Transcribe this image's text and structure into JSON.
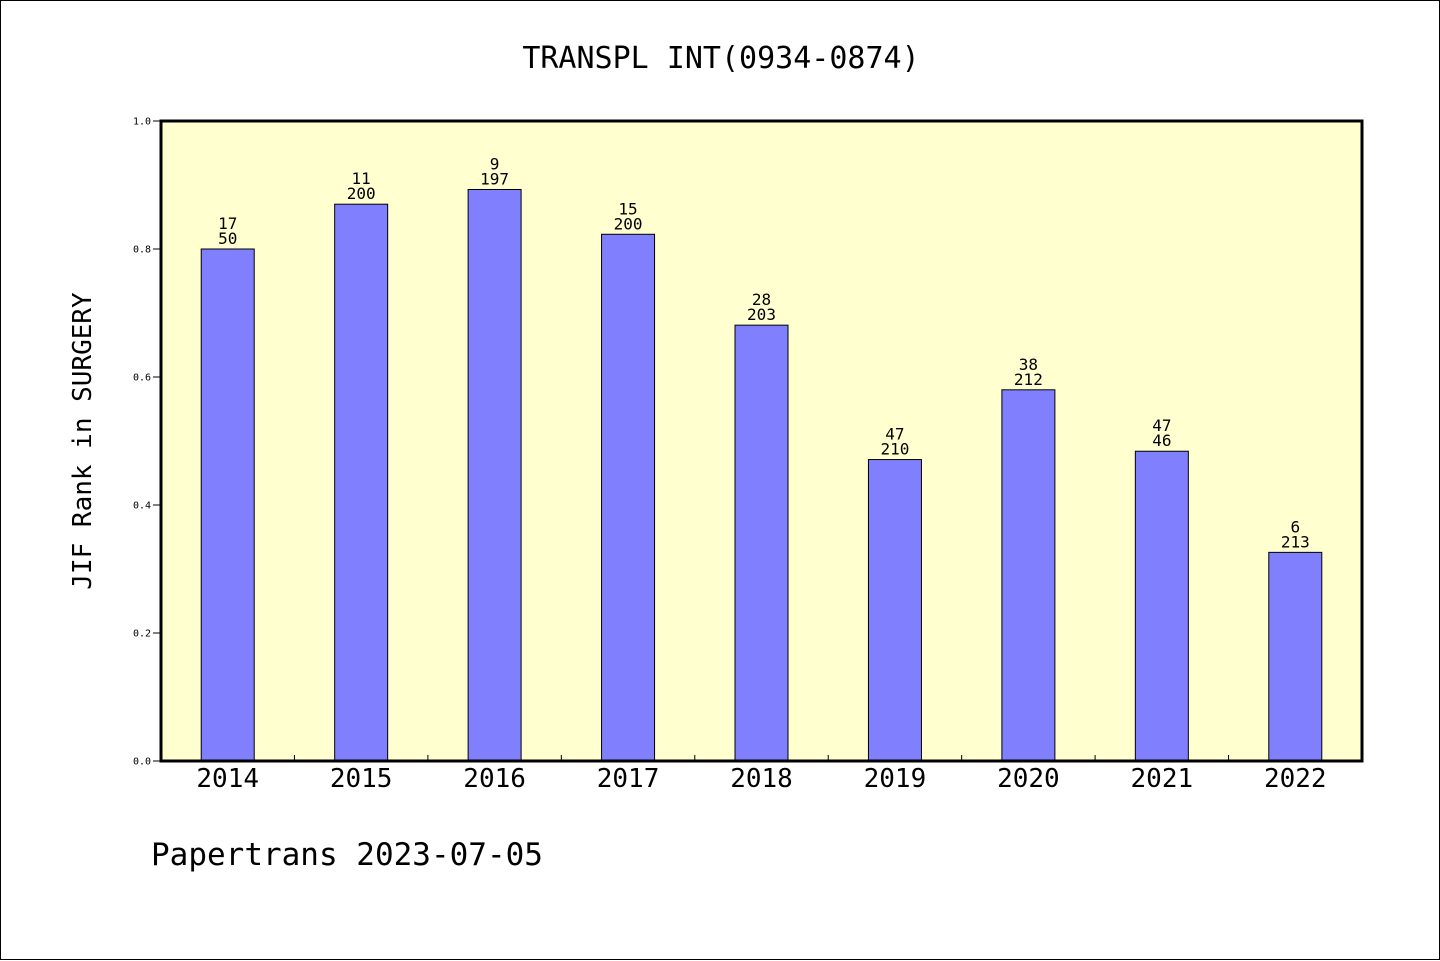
{
  "chart_data": {
    "type": "bar",
    "title": "TRANSPL INT(0934-0874)",
    "ylabel": "JIF Rank in SURGERY",
    "xlabel": "",
    "footer": "Papertrans 2023-07-05",
    "ylim": [
      0,
      1.0
    ],
    "yticks": [
      "0.0",
      "0.2",
      "0.4",
      "0.6",
      "0.8",
      "1.0"
    ],
    "categories": [
      "2014",
      "2015",
      "2016",
      "2017",
      "2018",
      "2019",
      "2020",
      "2021",
      "2022"
    ],
    "values": [
      0.8,
      0.87,
      0.893,
      0.823,
      0.681,
      0.471,
      0.58,
      0.484,
      0.326
    ],
    "labels_rank": [
      "17",
      "11",
      "9",
      "15",
      "28",
      "47",
      "38",
      "47",
      "6"
    ],
    "labels_total": [
      "50",
      "200",
      "197",
      "200",
      "203",
      "210",
      "212",
      "46",
      "213"
    ],
    "grid": false,
    "legend": "none",
    "colors": {
      "bar": "#8080ff",
      "plot_background": "#ffffd0",
      "axis": "#000000"
    }
  }
}
